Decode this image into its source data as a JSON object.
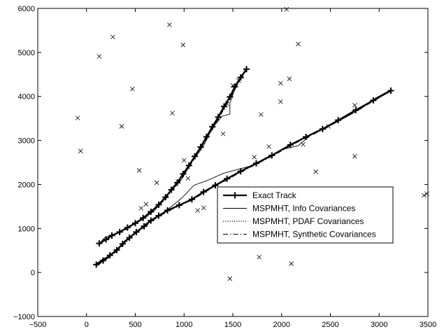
{
  "chart_data": {
    "type": "line",
    "title": "",
    "xlabel": "",
    "ylabel": "",
    "xlim": [
      -500,
      3500
    ],
    "ylim": [
      -1000,
      6000
    ],
    "xticks": [
      -500,
      0,
      500,
      1000,
      1500,
      2000,
      2500,
      3000,
      3500
    ],
    "yticks": [
      -1000,
      0,
      1000,
      2000,
      3000,
      4000,
      5000,
      6000
    ],
    "grid": false,
    "legend_position": "center-right",
    "series": [
      {
        "name": "Exact Track",
        "style": "bold-plus",
        "tracks": [
          [
            [
              130,
              660
            ],
            [
              200,
              750
            ],
            [
              260,
              840
            ],
            [
              340,
              920
            ],
            [
              420,
              1020
            ],
            [
              500,
              1120
            ],
            [
              580,
              1240
            ],
            [
              660,
              1380
            ],
            [
              740,
              1540
            ],
            [
              810,
              1710
            ],
            [
              870,
              1880
            ],
            [
              930,
              2040
            ],
            [
              990,
              2240
            ],
            [
              1050,
              2430
            ],
            [
              1110,
              2640
            ],
            [
              1170,
              2850
            ],
            [
              1230,
              3080
            ],
            [
              1290,
              3310
            ],
            [
              1350,
              3530
            ],
            [
              1410,
              3770
            ],
            [
              1470,
              3990
            ],
            [
              1520,
              4220
            ],
            [
              1580,
              4430
            ],
            [
              1640,
              4620
            ]
          ],
          [
            [
              100,
              180
            ],
            [
              170,
              270
            ],
            [
              240,
              390
            ],
            [
              310,
              510
            ],
            [
              370,
              650
            ],
            [
              440,
              790
            ],
            [
              510,
              920
            ],
            [
              590,
              1050
            ],
            [
              660,
              1180
            ],
            [
              740,
              1290
            ],
            [
              830,
              1410
            ],
            [
              950,
              1530
            ],
            [
              1080,
              1660
            ],
            [
              1200,
              1830
            ],
            [
              1320,
              1980
            ],
            [
              1440,
              2130
            ],
            [
              1580,
              2300
            ],
            [
              1740,
              2480
            ],
            [
              1900,
              2660
            ],
            [
              2090,
              2900
            ],
            [
              2250,
              3080
            ],
            [
              2420,
              3260
            ],
            [
              2580,
              3460
            ],
            [
              2760,
              3690
            ],
            [
              2940,
              3910
            ],
            [
              3120,
              4130
            ]
          ]
        ]
      },
      {
        "name": "MSPMHT, Info Covariances",
        "style": "thin-solid",
        "tracks": [
          [
            [
              130,
              650
            ],
            [
              190,
              800
            ],
            [
              280,
              860
            ],
            [
              370,
              960
            ],
            [
              460,
              1060
            ],
            [
              540,
              1160
            ],
            [
              620,
              1270
            ],
            [
              700,
              1420
            ],
            [
              770,
              1580
            ],
            [
              830,
              1760
            ],
            [
              900,
              1930
            ],
            [
              970,
              2100
            ],
            [
              1030,
              2320
            ],
            [
              1080,
              2520
            ],
            [
              1150,
              2720
            ],
            [
              1210,
              2920
            ],
            [
              1260,
              3150
            ],
            [
              1320,
              3360
            ],
            [
              1390,
              3550
            ],
            [
              1470,
              3600
            ],
            [
              1470,
              3850
            ],
            [
              1510,
              4100
            ],
            [
              1560,
              4350
            ],
            [
              1620,
              4580
            ]
          ],
          [
            [
              100,
              200
            ],
            [
              170,
              310
            ],
            [
              250,
              390
            ],
            [
              320,
              530
            ],
            [
              390,
              720
            ],
            [
              460,
              830
            ],
            [
              520,
              930
            ],
            [
              590,
              1080
            ],
            [
              670,
              1210
            ],
            [
              760,
              1320
            ],
            [
              860,
              1480
            ],
            [
              980,
              1700
            ],
            [
              1100,
              1980
            ],
            [
              1250,
              2100
            ],
            [
              1400,
              2250
            ],
            [
              1530,
              2330
            ],
            [
              1700,
              2430
            ],
            [
              1850,
              2620
            ],
            [
              2020,
              2800
            ],
            [
              2170,
              2880
            ],
            [
              2330,
              3180
            ],
            [
              2500,
              3340
            ],
            [
              2660,
              3530
            ],
            [
              2820,
              3730
            ],
            [
              2960,
              3960
            ],
            [
              3120,
              4150
            ]
          ]
        ]
      },
      {
        "name": "MSPMHT, PDAF Covariances",
        "style": "dotted",
        "tracks": [
          [
            [
              130,
              670
            ],
            [
              210,
              740
            ],
            [
              270,
              830
            ],
            [
              350,
              930
            ],
            [
              420,
              1030
            ],
            [
              510,
              1130
            ],
            [
              590,
              1250
            ],
            [
              670,
              1390
            ],
            [
              740,
              1560
            ],
            [
              810,
              1720
            ],
            [
              880,
              1890
            ],
            [
              940,
              2060
            ],
            [
              1000,
              2250
            ],
            [
              1060,
              2440
            ],
            [
              1120,
              2650
            ],
            [
              1180,
              2860
            ],
            [
              1240,
              3090
            ],
            [
              1300,
              3320
            ],
            [
              1360,
              3540
            ],
            [
              1420,
              3780
            ],
            [
              1480,
              4000
            ],
            [
              1530,
              4230
            ],
            [
              1590,
              4440
            ],
            [
              1640,
              4610
            ]
          ],
          [
            [
              100,
              170
            ],
            [
              170,
              280
            ],
            [
              240,
              380
            ],
            [
              310,
              500
            ],
            [
              370,
              660
            ],
            [
              440,
              780
            ],
            [
              510,
              910
            ],
            [
              590,
              1060
            ],
            [
              660,
              1190
            ],
            [
              740,
              1290
            ],
            [
              830,
              1400
            ],
            [
              950,
              1540
            ],
            [
              1080,
              1670
            ],
            [
              1200,
              1840
            ],
            [
              1320,
              1990
            ],
            [
              1440,
              2140
            ],
            [
              1580,
              2310
            ],
            [
              1740,
              2470
            ],
            [
              1900,
              2650
            ],
            [
              2090,
              2910
            ],
            [
              2250,
              3070
            ],
            [
              2420,
              3270
            ],
            [
              2580,
              3450
            ],
            [
              2760,
              3700
            ],
            [
              2940,
              3900
            ],
            [
              3120,
              4140
            ]
          ]
        ]
      },
      {
        "name": "MSPMHT, Synthetic Covariances",
        "style": "dash-dot",
        "tracks": [
          [
            [
              120,
              640
            ],
            [
              200,
              760
            ],
            [
              270,
              850
            ],
            [
              350,
              910
            ],
            [
              430,
              1010
            ],
            [
              500,
              1110
            ],
            [
              580,
              1230
            ],
            [
              660,
              1370
            ],
            [
              750,
              1530
            ],
            [
              820,
              1700
            ],
            [
              880,
              1870
            ],
            [
              940,
              2030
            ],
            [
              1000,
              2230
            ],
            [
              1060,
              2420
            ],
            [
              1120,
              2630
            ],
            [
              1180,
              2840
            ],
            [
              1240,
              3070
            ],
            [
              1300,
              3300
            ],
            [
              1360,
              3520
            ],
            [
              1420,
              3760
            ],
            [
              1480,
              3980
            ],
            [
              1530,
              4210
            ],
            [
              1590,
              4420
            ],
            [
              1640,
              4600
            ]
          ],
          [
            [
              110,
              160
            ],
            [
              180,
              260
            ],
            [
              250,
              380
            ],
            [
              320,
              500
            ],
            [
              380,
              640
            ],
            [
              450,
              780
            ],
            [
              520,
              910
            ],
            [
              600,
              1040
            ],
            [
              670,
              1170
            ],
            [
              750,
              1280
            ],
            [
              840,
              1400
            ],
            [
              960,
              1520
            ],
            [
              1090,
              1650
            ],
            [
              1210,
              1820
            ],
            [
              1330,
              1970
            ],
            [
              1450,
              2120
            ],
            [
              1590,
              2290
            ],
            [
              1750,
              2470
            ],
            [
              1910,
              2650
            ],
            [
              2100,
              2890
            ],
            [
              2260,
              3070
            ],
            [
              2430,
              3250
            ],
            [
              2590,
              3450
            ],
            [
              2770,
              3680
            ],
            [
              2950,
              3900
            ],
            [
              3110,
              4120
            ]
          ]
        ]
      },
      {
        "name": "",
        "style": "x-marker",
        "points": [
          [
            -90,
            3510
          ],
          [
            -60,
            2760
          ],
          [
            130,
            4910
          ],
          [
            270,
            5350
          ],
          [
            360,
            3320
          ],
          [
            470,
            4170
          ],
          [
            540,
            2320
          ],
          [
            560,
            1460
          ],
          [
            610,
            1550
          ],
          [
            720,
            2040
          ],
          [
            850,
            5630
          ],
          [
            880,
            3620
          ],
          [
            990,
            5170
          ],
          [
            1000,
            2550
          ],
          [
            1040,
            2140
          ],
          [
            1140,
            1410
          ],
          [
            1200,
            1470
          ],
          [
            1400,
            3150
          ],
          [
            1440,
            3830
          ],
          [
            1470,
            -140
          ],
          [
            1500,
            4250
          ],
          [
            1560,
            4360
          ],
          [
            1720,
            2620
          ],
          [
            1770,
            350
          ],
          [
            1790,
            3590
          ],
          [
            1870,
            2860
          ],
          [
            1990,
            4300
          ],
          [
            1990,
            3880
          ],
          [
            2050,
            5980
          ],
          [
            2080,
            4400
          ],
          [
            2100,
            200
          ],
          [
            2170,
            5190
          ],
          [
            2220,
            2910
          ],
          [
            2350,
            2290
          ],
          [
            2480,
            3320
          ],
          [
            2750,
            3800
          ],
          [
            2750,
            2640
          ],
          [
            3460,
            1750
          ],
          [
            3490,
            1790
          ]
        ]
      }
    ]
  },
  "legend": {
    "items": [
      {
        "label": "Exact Track",
        "style": "bold-plus"
      },
      {
        "label": "MSPMHT, Info Covariances",
        "style": "thin-solid"
      },
      {
        "label": "MSPMHT, PDAF Covariances",
        "style": "dotted"
      },
      {
        "label": "MSPMHT, Synthetic Covariances",
        "style": "dash-dot"
      }
    ]
  }
}
